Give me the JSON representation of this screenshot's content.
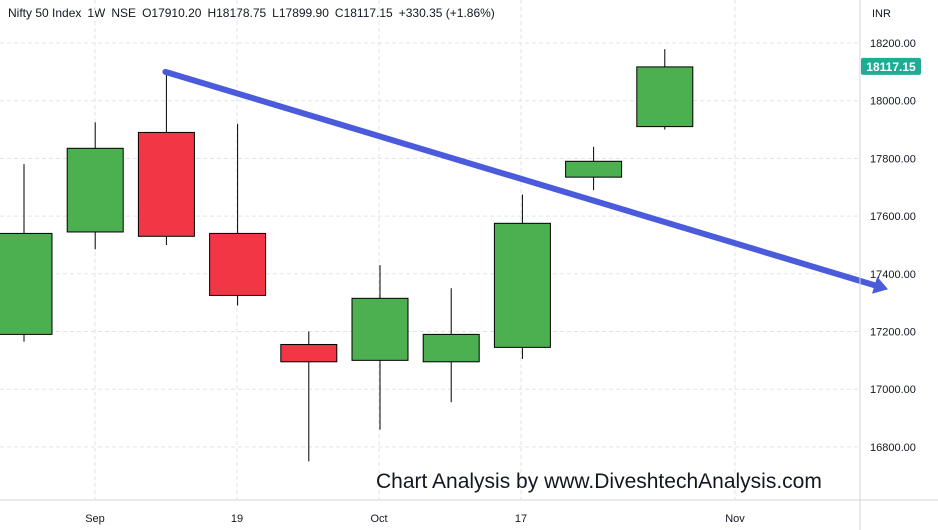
{
  "header": {
    "symbol": "Nifty 50 Index",
    "interval": "1W",
    "exchange": "NSE",
    "open": "O17910.20",
    "high": "H18178.75",
    "low": "L17899.90",
    "close": "C18117.15",
    "change": "+330.35 (+1.86%)"
  },
  "currency_label": "INR",
  "price_tag": {
    "value": "18117.15",
    "color": "#22ab94"
  },
  "watermark": "Chart Analysis by www.DiveshtechAnalysis.com",
  "colors": {
    "up": "#4caf50",
    "down": "#f23645",
    "trendline": "#4a5bdc",
    "grid": "#e0e3eb"
  },
  "chart_data": {
    "type": "candlestick",
    "x_ticks": [
      "Sep",
      "19",
      "Oct",
      "17",
      "Nov"
    ],
    "y_ticks": [
      "18200.00",
      "18000.00",
      "17800.00",
      "17600.00",
      "17400.00",
      "17200.00",
      "17000.00",
      "16800.00"
    ],
    "ylim": [
      16640,
      18340
    ],
    "grid": true,
    "candles": [
      {
        "open": 17190,
        "high": 17780,
        "low": 17165,
        "close": 17540
      },
      {
        "open": 17545,
        "high": 17925,
        "low": 17485,
        "close": 17835
      },
      {
        "open": 17890,
        "high": 18100,
        "low": 17500,
        "close": 17530
      },
      {
        "open": 17540,
        "high": 17920,
        "low": 17290,
        "close": 17325
      },
      {
        "open": 17155,
        "high": 17200,
        "low": 16750,
        "close": 17095
      },
      {
        "open": 17100,
        "high": 17430,
        "low": 16860,
        "close": 17315
      },
      {
        "open": 17095,
        "high": 17350,
        "low": 16955,
        "close": 17190
      },
      {
        "open": 17145,
        "high": 17675,
        "low": 17105,
        "close": 17575
      },
      {
        "open": 17735,
        "high": 17840,
        "low": 17690,
        "close": 17790
      },
      {
        "open": 17910.2,
        "high": 18178.75,
        "low": 17899.9,
        "close": 18117.15
      }
    ],
    "trendline": {
      "from_candle": 2,
      "from_price": 18100,
      "to_price": 17350,
      "arrow": true
    }
  }
}
